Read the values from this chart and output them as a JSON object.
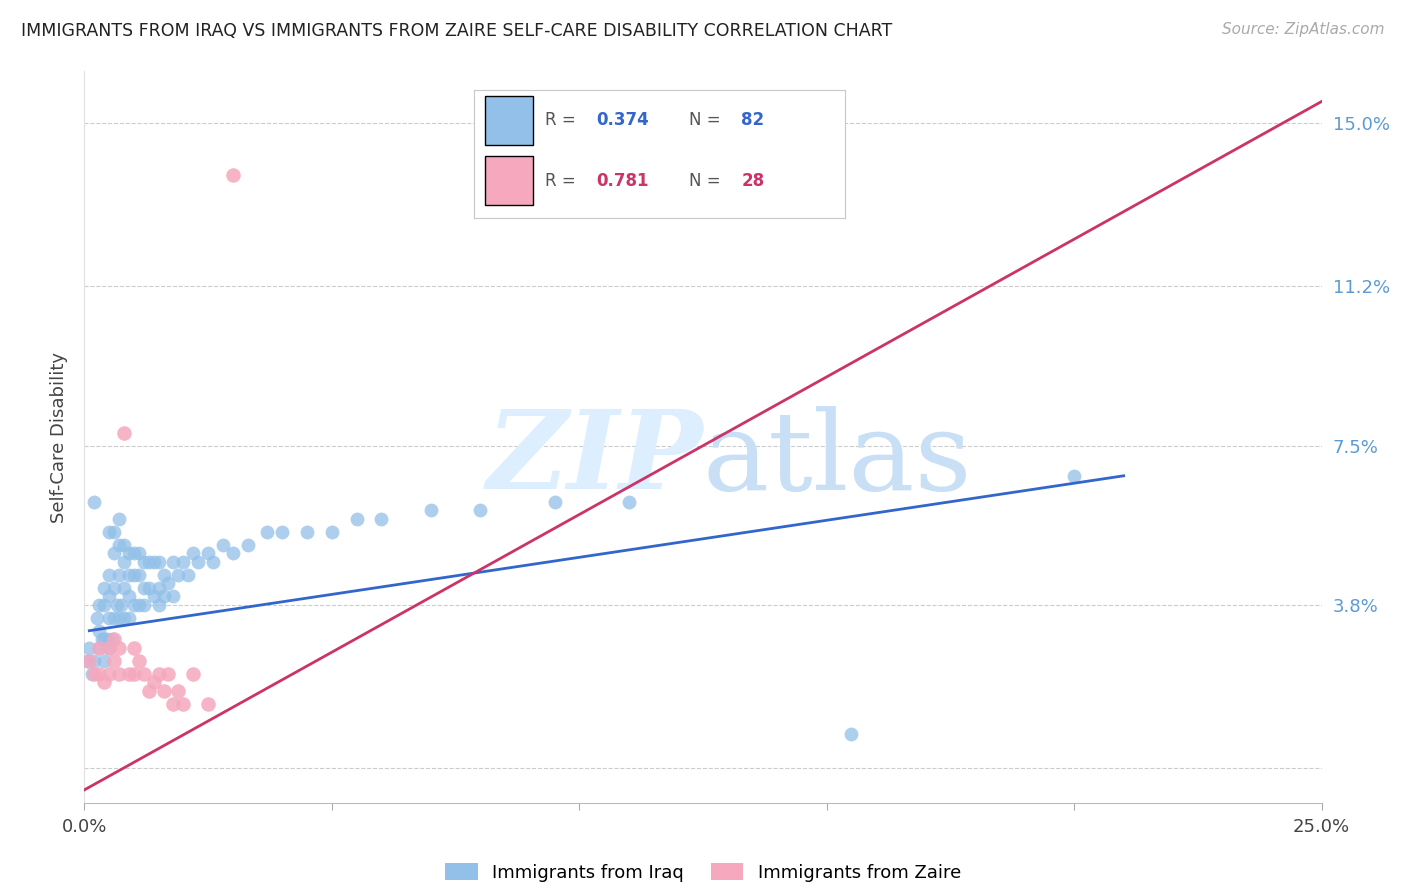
{
  "title": "IMMIGRANTS FROM IRAQ VS IMMIGRANTS FROM ZAIRE SELF-CARE DISABILITY CORRELATION CHART",
  "source": "Source: ZipAtlas.com",
  "ylabel": "Self-Care Disability",
  "yticks": [
    0.0,
    0.038,
    0.075,
    0.112,
    0.15
  ],
  "ytick_labels": [
    "",
    "3.8%",
    "7.5%",
    "11.2%",
    "15.0%"
  ],
  "xlim": [
    0.0,
    0.25
  ],
  "ylim": [
    -0.008,
    0.162
  ],
  "iraq_color": "#92c0e8",
  "zaire_color": "#f5a8be",
  "iraq_line_color": "#3366cc",
  "zaire_line_color": "#cc3366",
  "watermark_color": "#ddeeff",
  "legend_iraq_label": "Immigrants from Iraq",
  "legend_zaire_label": "Immigrants from Zaire",
  "iraq_x": [
    0.0005,
    0.001,
    0.0015,
    0.002,
    0.002,
    0.0025,
    0.003,
    0.003,
    0.003,
    0.0035,
    0.004,
    0.004,
    0.004,
    0.004,
    0.0045,
    0.005,
    0.005,
    0.005,
    0.005,
    0.005,
    0.0055,
    0.006,
    0.006,
    0.006,
    0.006,
    0.0065,
    0.007,
    0.007,
    0.007,
    0.007,
    0.0075,
    0.008,
    0.008,
    0.008,
    0.008,
    0.009,
    0.009,
    0.009,
    0.009,
    0.01,
    0.01,
    0.01,
    0.011,
    0.011,
    0.011,
    0.012,
    0.012,
    0.012,
    0.013,
    0.013,
    0.014,
    0.014,
    0.015,
    0.015,
    0.015,
    0.016,
    0.016,
    0.017,
    0.018,
    0.018,
    0.019,
    0.02,
    0.021,
    0.022,
    0.023,
    0.025,
    0.026,
    0.028,
    0.03,
    0.033,
    0.037,
    0.04,
    0.045,
    0.05,
    0.055,
    0.06,
    0.07,
    0.08,
    0.095,
    0.11,
    0.155,
    0.2
  ],
  "iraq_y": [
    0.025,
    0.028,
    0.022,
    0.062,
    0.025,
    0.035,
    0.038,
    0.032,
    0.028,
    0.03,
    0.042,
    0.038,
    0.03,
    0.025,
    0.03,
    0.055,
    0.045,
    0.04,
    0.035,
    0.028,
    0.03,
    0.055,
    0.05,
    0.042,
    0.035,
    0.038,
    0.058,
    0.052,
    0.045,
    0.035,
    0.038,
    0.052,
    0.048,
    0.042,
    0.035,
    0.05,
    0.045,
    0.04,
    0.035,
    0.05,
    0.045,
    0.038,
    0.05,
    0.045,
    0.038,
    0.048,
    0.042,
    0.038,
    0.048,
    0.042,
    0.048,
    0.04,
    0.048,
    0.042,
    0.038,
    0.045,
    0.04,
    0.043,
    0.048,
    0.04,
    0.045,
    0.048,
    0.045,
    0.05,
    0.048,
    0.05,
    0.048,
    0.052,
    0.05,
    0.052,
    0.055,
    0.055,
    0.055,
    0.055,
    0.058,
    0.058,
    0.06,
    0.06,
    0.062,
    0.062,
    0.008,
    0.068
  ],
  "zaire_x": [
    0.001,
    0.002,
    0.003,
    0.003,
    0.004,
    0.005,
    0.005,
    0.006,
    0.006,
    0.007,
    0.007,
    0.008,
    0.009,
    0.01,
    0.01,
    0.011,
    0.012,
    0.013,
    0.014,
    0.015,
    0.016,
    0.017,
    0.018,
    0.019,
    0.02,
    0.022,
    0.025,
    0.03
  ],
  "zaire_y": [
    0.025,
    0.022,
    0.028,
    0.022,
    0.02,
    0.028,
    0.022,
    0.03,
    0.025,
    0.028,
    0.022,
    0.078,
    0.022,
    0.028,
    0.022,
    0.025,
    0.022,
    0.018,
    0.02,
    0.022,
    0.018,
    0.022,
    0.015,
    0.018,
    0.015,
    0.022,
    0.015,
    0.138
  ],
  "iraq_line_x": [
    0.001,
    0.21
  ],
  "iraq_line_y": [
    0.032,
    0.068
  ],
  "zaire_line_x": [
    0.0,
    0.25
  ],
  "zaire_line_y": [
    -0.005,
    0.155
  ]
}
